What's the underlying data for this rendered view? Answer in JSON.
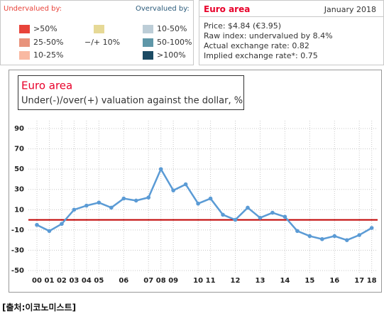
{
  "legend_panel": {
    "undervalued_title": "Undervalued by:",
    "overvalued_title": "Overvalued by:",
    "undervalued": [
      {
        "label": ">50%",
        "color": "#e8433a"
      },
      {
        "label": "25-50%",
        "color": "#e8937c"
      },
      {
        "label": "10-25%",
        "color": "#f9b9a2"
      }
    ],
    "neutral": {
      "label": "−/+ 10%",
      "color": "#e6d996"
    },
    "overvalued": [
      {
        "label": "10-50%",
        "color": "#bccdd7"
      },
      {
        "label": "50-100%",
        "color": "#5f97a8"
      },
      {
        "label": ">100%",
        "color": "#1b4a63"
      }
    ]
  },
  "info_panel": {
    "title": "Euro area",
    "date": "January 2018",
    "lines": [
      "Price: $4.84 (€3.95)",
      "Raw index: undervalued by 8.4%",
      "Actual exchange rate: 0.82",
      "Implied exchange rate*: 0.75"
    ]
  },
  "chart_data": {
    "type": "line",
    "title": "Euro area",
    "subtitle": "Under(-)/over(+) valuation against the dollar, %",
    "categories": [
      "00",
      "01",
      "02",
      "03",
      "04",
      "05",
      null,
      "06",
      null,
      "07",
      "08",
      "09",
      null,
      "10",
      "11",
      null,
      "12",
      null,
      "13",
      null,
      "14",
      null,
      "15",
      null,
      "16",
      null,
      "17",
      "18"
    ],
    "series": [
      {
        "name": "Euro area",
        "color": "#5b9bd5",
        "values": [
          -5,
          -11,
          -4,
          10,
          14,
          17,
          12,
          21,
          19,
          22,
          50,
          29,
          35,
          16,
          21,
          5,
          0,
          12,
          2,
          7,
          3,
          -11,
          -16,
          -19,
          -16,
          -20,
          -15,
          -8
        ]
      }
    ],
    "ylim": [
      -50,
      90
    ],
    "yticks": [
      90,
      70,
      50,
      30,
      10,
      -10,
      -30,
      -50
    ],
    "grid": true,
    "reference_line": 0,
    "reference_color": "#c00000"
  },
  "footer": "[출처:이코노미스트]"
}
